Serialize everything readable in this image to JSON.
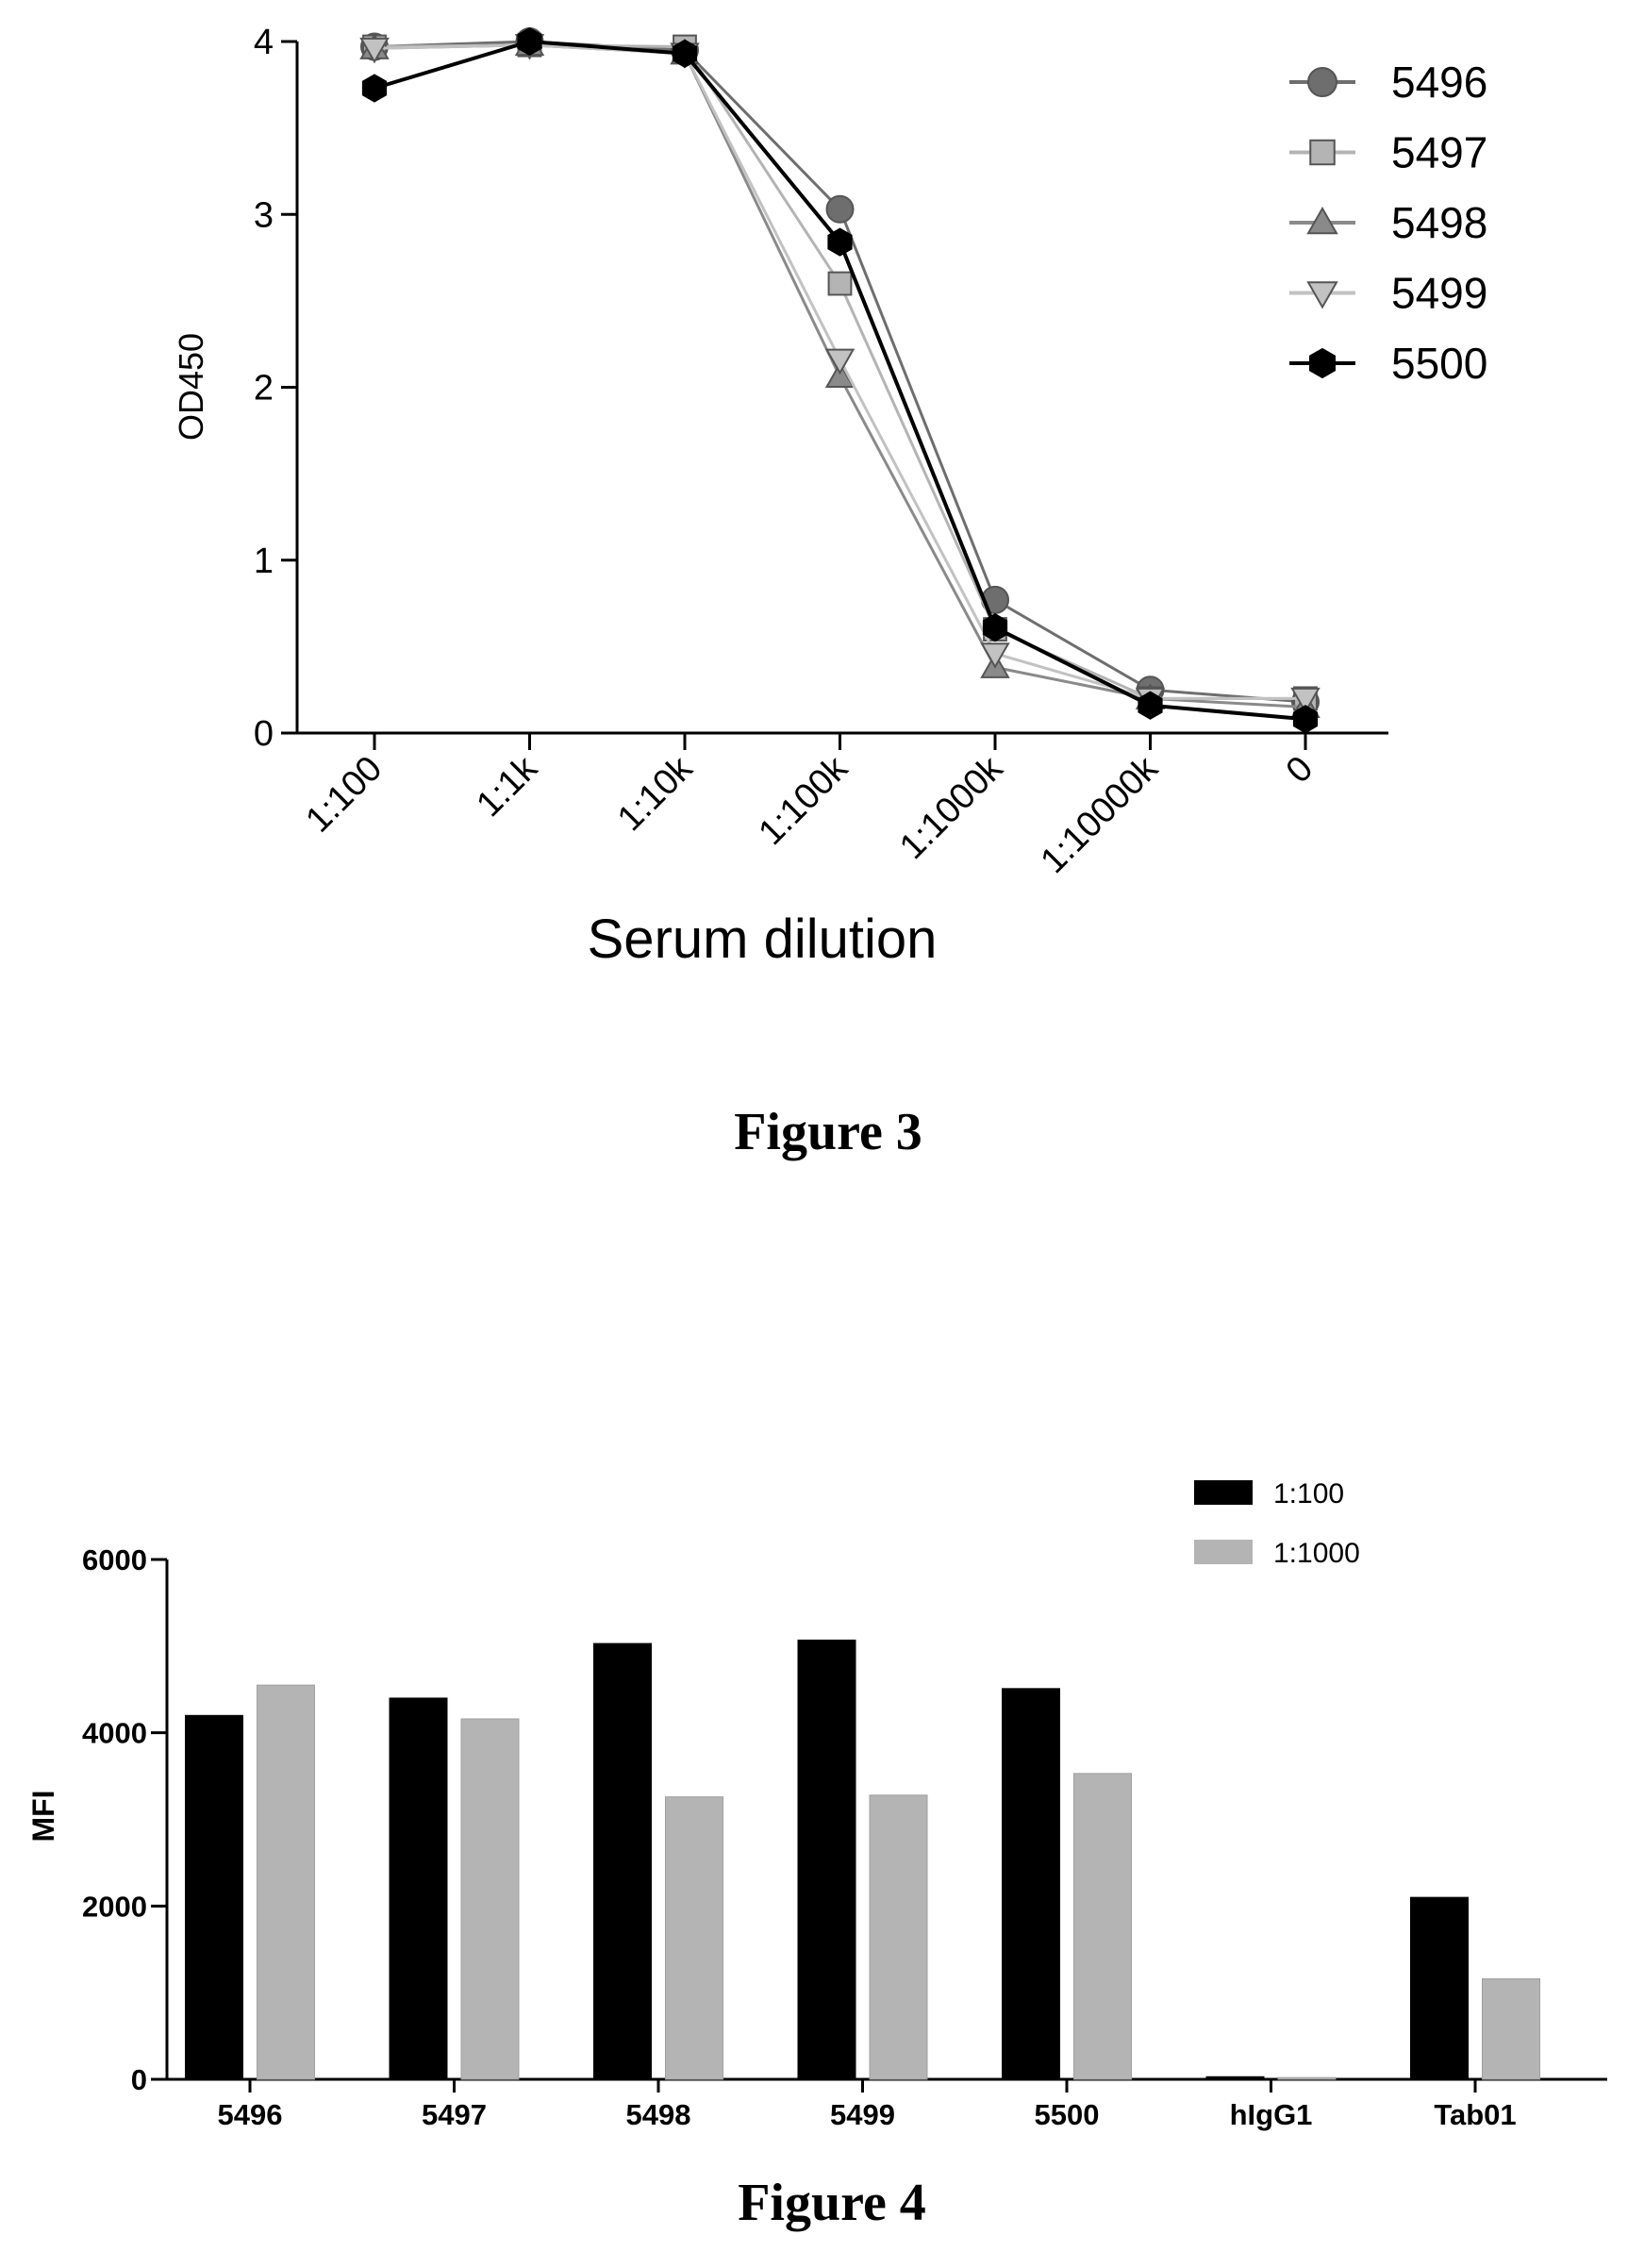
{
  "chart_data": [
    {
      "type": "line",
      "caption": "Figure 3",
      "xlabel": "Serum dilution",
      "ylabel": "OD450",
      "categories": [
        "1:100",
        "1:1k",
        "1:10k",
        "1:100k",
        "1:1000k",
        "1:10000k",
        "0"
      ],
      "ylim": [
        0,
        4
      ],
      "yticks": [
        "0",
        "1",
        "2",
        "3",
        "4"
      ],
      "legend": "top-right",
      "series": [
        {
          "name": "5496",
          "marker": "circle",
          "color": "#6e6e6e",
          "values": [
            3.97,
            4.0,
            3.95,
            3.03,
            0.77,
            0.25,
            0.18
          ]
        },
        {
          "name": "5497",
          "marker": "square",
          "color": "#b4b4b4",
          "values": [
            3.97,
            3.98,
            3.97,
            2.6,
            0.6,
            0.2,
            0.2
          ]
        },
        {
          "name": "5498",
          "marker": "triangle-up",
          "color": "#8a8a8a",
          "values": [
            3.96,
            3.98,
            3.93,
            2.06,
            0.38,
            0.2,
            0.15
          ]
        },
        {
          "name": "5499",
          "marker": "triangle-down",
          "color": "#c2c2c2",
          "values": [
            3.96,
            3.98,
            3.93,
            2.16,
            0.46,
            0.2,
            0.2
          ]
        },
        {
          "name": "5500",
          "marker": "hexagon",
          "color": "#000000",
          "values": [
            3.73,
            4.0,
            3.93,
            2.84,
            0.61,
            0.16,
            0.08
          ]
        }
      ]
    },
    {
      "type": "bar",
      "caption": "Figure 4",
      "xlabel": "",
      "ylabel": "MFI",
      "categories": [
        "5496",
        "5497",
        "5498",
        "5499",
        "5500",
        "hIgG1",
        "Tab01"
      ],
      "ylim": [
        0,
        6000
      ],
      "yticks": [
        "0",
        "2000",
        "4000",
        "6000"
      ],
      "legend": "top-right",
      "series": [
        {
          "name": "1:100",
          "color": "#000000",
          "values": [
            4200,
            4400,
            5030,
            5070,
            4510,
            30,
            2100
          ]
        },
        {
          "name": "1:1000",
          "color": "#b4b4b4",
          "values": [
            4550,
            4160,
            3260,
            3280,
            3530,
            20,
            1160
          ]
        }
      ]
    }
  ]
}
